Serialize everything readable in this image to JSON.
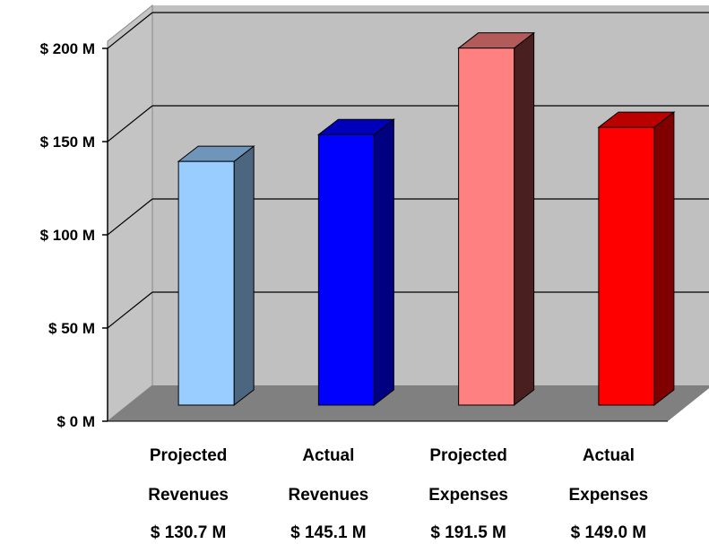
{
  "chart_data": {
    "type": "bar",
    "style": "3d-column",
    "categories": [
      [
        "Projected",
        "Revenues"
      ],
      [
        "Actual",
        "Revenues"
      ],
      [
        "Projected",
        "Expenses"
      ],
      [
        "Actual",
        "Expenses"
      ]
    ],
    "values": [
      130.7,
      145.1,
      191.5,
      149.0
    ],
    "value_labels": [
      "$ 130.7 M",
      "$ 145.1 M",
      "$ 191.5 M",
      "$ 149.0 M"
    ],
    "yticks": [
      0,
      50,
      100,
      150,
      200
    ],
    "ytick_labels": [
      "$ 0 M",
      "$ 50 M",
      "$ 100 M",
      "$ 150 M",
      "$ 200 M"
    ],
    "ylim": [
      0,
      200
    ],
    "grid": true,
    "legend": "none",
    "colors": {
      "bars": [
        {
          "front": "#99ccff",
          "side": "#4c6680",
          "top": "#6f95bb"
        },
        {
          "front": "#0000ff",
          "side": "#000080",
          "top": "#0000bb"
        },
        {
          "front": "#ff8080",
          "side": "#4a1f1f",
          "top": "#b35a5a"
        },
        {
          "front": "#ff0000",
          "side": "#800000",
          "top": "#bb0000"
        }
      ],
      "wall": "#c0c0c0",
      "side_wall": "#c4c4c4",
      "floor": "#808080",
      "gridline": "#000000"
    }
  }
}
